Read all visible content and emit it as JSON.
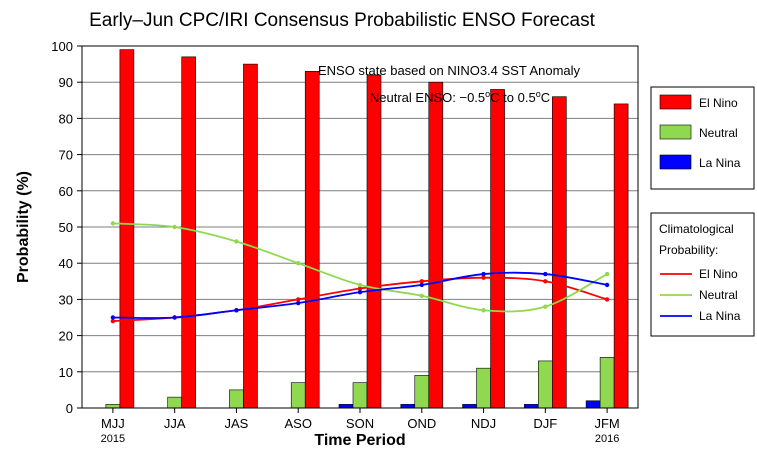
{
  "chart_data": {
    "type": "bar",
    "title": "Early–Jun CPC/IRI Consensus Probabilistic ENSO Forecast",
    "xlabel": "Time Period",
    "ylabel": "Probability (%)",
    "ylim": [
      0,
      100
    ],
    "yticks": [
      0,
      10,
      20,
      30,
      40,
      50,
      60,
      70,
      80,
      90,
      100
    ],
    "categories": [
      "MJJ",
      "JJA",
      "JAS",
      "ASO",
      "SON",
      "OND",
      "NDJ",
      "DJF",
      "JFM"
    ],
    "year_labels": [
      {
        "category": "MJJ",
        "text": "2015"
      },
      {
        "category": "JFM",
        "text": "2016"
      }
    ],
    "series": [
      {
        "name": "La Nina",
        "color": "#0000ff",
        "values": [
          0,
          0,
          0,
          0,
          1,
          1,
          1,
          1,
          2
        ]
      },
      {
        "name": "Neutral",
        "color": "#90d850",
        "values": [
          1,
          3,
          5,
          7,
          7,
          9,
          11,
          13,
          14
        ]
      },
      {
        "name": "El Nino",
        "color": "#ff0000",
        "values": [
          99,
          97,
          95,
          93,
          92,
          90,
          88,
          86,
          84
        ]
      }
    ],
    "climatology": {
      "title_lines": [
        "Climatological",
        "Probability:"
      ],
      "series": [
        {
          "name": "El Nino",
          "color": "#ff0000",
          "values": [
            24,
            25,
            27,
            30,
            33,
            35,
            36,
            35,
            30
          ]
        },
        {
          "name": "Neutral",
          "color": "#90d850",
          "values": [
            51,
            50,
            46,
            40,
            34,
            31,
            27,
            28,
            37
          ]
        },
        {
          "name": "La Nina",
          "color": "#0000ff",
          "values": [
            25,
            25,
            27,
            29,
            32,
            34,
            37,
            37,
            34
          ]
        }
      ]
    },
    "annotations": {
      "line1": "ENSO state based on NINO3.4 SST Anomaly",
      "line2_prefix": "Neutral ENSO: −0.5",
      "line2_mid": "C to 0.5",
      "line2_suffix": "C",
      "degree": "o"
    },
    "legend": {
      "placement": "right",
      "bar_items": [
        "El Nino",
        "Neutral",
        "La Nina"
      ]
    },
    "grid": true
  }
}
